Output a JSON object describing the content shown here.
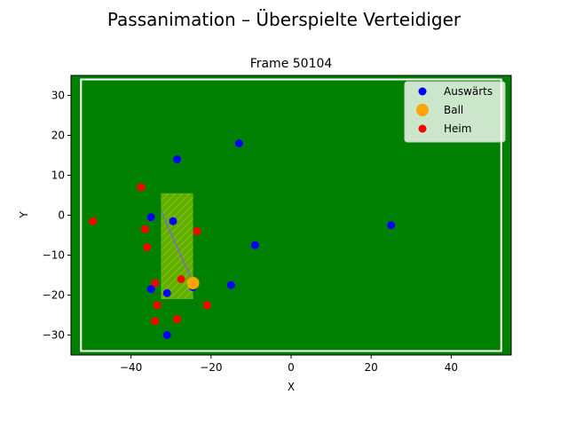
{
  "figure": {
    "suptitle": "Passanimation – Überspielte Verteidiger"
  },
  "chart_data": {
    "type": "scatter",
    "title": "Frame 50104",
    "xlabel": "X",
    "ylabel": "Y",
    "xlim": [
      -55,
      55
    ],
    "ylim": [
      -35,
      35
    ],
    "xticks": [
      -40,
      -20,
      0,
      20,
      40
    ],
    "yticks": [
      -30,
      -20,
      -10,
      0,
      10,
      20,
      30
    ],
    "grid": false,
    "legend_position": "top-right",
    "background_color": "#008000",
    "pitch": {
      "x": [
        -52.5,
        52.5
      ],
      "y": [
        -34,
        34
      ],
      "line_color": "#ffffff"
    },
    "highlight_zone": {
      "x": [
        -32.5,
        -24.5
      ],
      "y": [
        -21,
        5.5
      ],
      "fill_color": "#7fbf00",
      "hatch": "/"
    },
    "pass_line": {
      "x": [
        -32.5,
        -24.2
      ],
      "y": [
        1,
        -17.5
      ],
      "color": "#7b68c8"
    },
    "series": [
      {
        "name": "Auswärts",
        "color": "#0000ff",
        "points": [
          [
            -13,
            18
          ],
          [
            -28.5,
            14
          ],
          [
            -35,
            -0.5
          ],
          [
            -29.5,
            -1.5
          ],
          [
            -9,
            -7.5
          ],
          [
            25,
            -2.5
          ],
          [
            -15,
            -17.5
          ],
          [
            -35,
            -18.5
          ],
          [
            -31,
            -19.5
          ],
          [
            -31,
            -30
          ],
          [
            -24.5,
            -18
          ]
        ]
      },
      {
        "name": "Ball",
        "color": "#ffa500",
        "points": [
          [
            -24.5,
            -17
          ]
        ]
      },
      {
        "name": "Heim",
        "color": "#ff0000",
        "points": [
          [
            -37.5,
            7
          ],
          [
            -49.5,
            -1.5
          ],
          [
            -36.5,
            -3.5
          ],
          [
            -23.5,
            -4
          ],
          [
            -36,
            -8
          ],
          [
            -34,
            -17
          ],
          [
            -27.5,
            -16
          ],
          [
            -33.5,
            -22.5
          ],
          [
            -21,
            -22.5
          ],
          [
            -28.5,
            -26
          ],
          [
            -34,
            -26.5
          ]
        ]
      }
    ]
  }
}
